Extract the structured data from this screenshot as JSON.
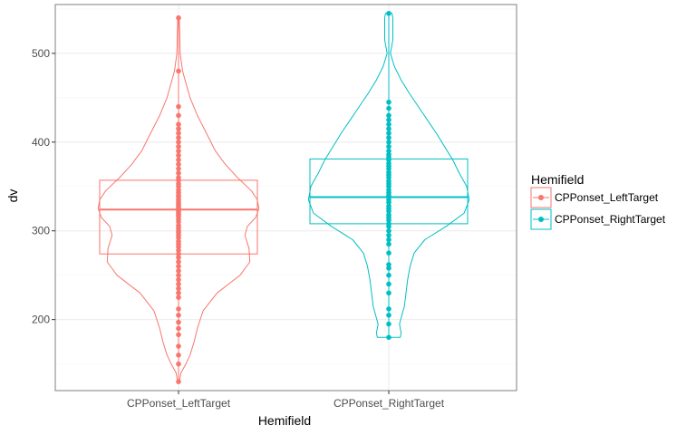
{
  "chart_data": {
    "type": "violin-box-dot",
    "xlabel": "Hemifield",
    "ylabel": "dv",
    "ylim": [
      120,
      555
    ],
    "yticks": [
      200,
      300,
      400,
      500
    ],
    "grid": true,
    "legend": {
      "title": "Hemifield",
      "placement": "right",
      "entries": [
        "CPPonset_LeftTarget",
        "CPPonset_RightTarget"
      ]
    },
    "colors": {
      "CPPonset_LeftTarget": "#F8766D",
      "CPPonset_RightTarget": "#00BFC4",
      "grid_major": "#ebebeb",
      "grid_minor": "#f5f5f5",
      "panel_border": "#7f7f7f"
    },
    "categories": [
      "CPPonset_LeftTarget",
      "CPPonset_RightTarget"
    ],
    "series": [
      {
        "name": "CPPonset_LeftTarget",
        "box": {
          "q1": 274,
          "median": 324,
          "q3": 357
        },
        "violin": {
          "y": [
            130,
            140,
            150,
            160,
            175,
            190,
            210,
            230,
            250,
            265,
            280,
            295,
            305,
            315,
            325,
            335,
            345,
            360,
            375,
            390,
            410,
            430,
            450,
            470,
            480,
            500,
            520,
            540
          ],
          "width": [
            0.01,
            0.03,
            0.09,
            0.14,
            0.19,
            0.23,
            0.3,
            0.47,
            0.75,
            0.87,
            0.86,
            0.81,
            0.84,
            0.94,
            0.98,
            0.96,
            0.89,
            0.72,
            0.57,
            0.45,
            0.34,
            0.23,
            0.14,
            0.08,
            0.05,
            0.02,
            0.015,
            0.01
          ]
        },
        "points": [
          130,
          150,
          160,
          170,
          183,
          190,
          197,
          205,
          212,
          225,
          230,
          235,
          240,
          245,
          250,
          255,
          260,
          265,
          270,
          274,
          278,
          282,
          285,
          288,
          292,
          295,
          298,
          300,
          303,
          306,
          310,
          313,
          316,
          318,
          320,
          322,
          324,
          326,
          328,
          330,
          332,
          335,
          338,
          340,
          343,
          346,
          350,
          353,
          357,
          360,
          365,
          370,
          375,
          380,
          385,
          390,
          395,
          400,
          405,
          410,
          415,
          420,
          430,
          440,
          480,
          540
        ]
      },
      {
        "name": "CPPonset_RightTarget",
        "box": {
          "q1": 308,
          "median": 338,
          "q3": 381
        },
        "violin": {
          "y": [
            180,
            185,
            195,
            205,
            215,
            230,
            245,
            260,
            275,
            290,
            305,
            320,
            335,
            350,
            365,
            380,
            395,
            410,
            425,
            440,
            455,
            470,
            485,
            500,
            515,
            530,
            540,
            545
          ],
          "width": [
            0.14,
            0.15,
            0.13,
            0.16,
            0.19,
            0.21,
            0.23,
            0.26,
            0.31,
            0.44,
            0.7,
            0.92,
            0.98,
            0.95,
            0.86,
            0.78,
            0.68,
            0.58,
            0.47,
            0.36,
            0.25,
            0.15,
            0.07,
            0.02,
            0.05,
            0.05,
            0.05,
            0.04
          ]
        },
        "points": [
          180,
          195,
          205,
          212,
          230,
          240,
          250,
          258,
          262,
          275,
          285,
          290,
          295,
          300,
          305,
          308,
          312,
          315,
          318,
          322,
          325,
          328,
          332,
          335,
          338,
          340,
          343,
          346,
          350,
          353,
          356,
          360,
          363,
          366,
          370,
          373,
          376,
          380,
          383,
          386,
          390,
          395,
          400,
          405,
          410,
          415,
          420,
          425,
          430,
          438,
          445,
          545
        ]
      }
    ]
  }
}
